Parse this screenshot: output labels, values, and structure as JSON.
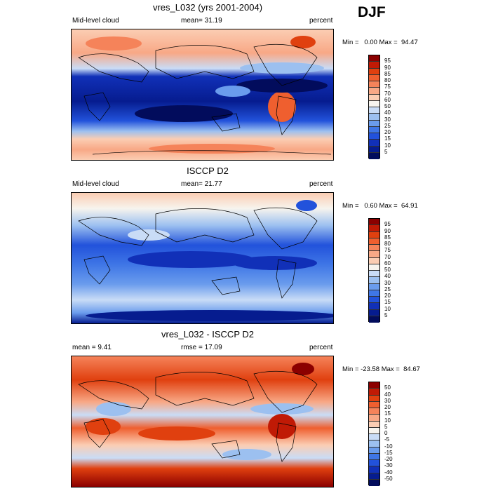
{
  "season": "DJF",
  "panels": [
    {
      "title": "vres_L032 (yrs 2001-2004)",
      "left_label": "Mid-level cloud",
      "center_label": "mean=  31.19",
      "right_label": "percent",
      "minmax": "Min =   0.00 Max =  94.47",
      "colorbar_levels": [
        "95",
        "90",
        "85",
        "80",
        "75",
        "70",
        "60",
        "50",
        "40",
        "30",
        "25",
        "20",
        "15",
        "10",
        "5"
      ],
      "colorbar_colors": [
        "#8b0000",
        "#c01a05",
        "#e0400f",
        "#ef5f2f",
        "#f5835a",
        "#f8a886",
        "#fbcdb3",
        "#f7f4ee",
        "#c9dcf6",
        "#9cc0f0",
        "#6a9ced",
        "#3f76e6",
        "#2252db",
        "#1130b8",
        "#061c8f",
        "#020c5c"
      ]
    },
    {
      "title": "ISCCP D2",
      "left_label": "Mid-level cloud",
      "center_label": "mean=  21.77",
      "right_label": "percent",
      "minmax": "Min =   0.60 Max =  64.91",
      "colorbar_levels": [
        "95",
        "90",
        "85",
        "80",
        "75",
        "70",
        "60",
        "50",
        "40",
        "30",
        "25",
        "20",
        "15",
        "10",
        "5"
      ],
      "colorbar_colors": [
        "#8b0000",
        "#c01a05",
        "#e0400f",
        "#ef5f2f",
        "#f5835a",
        "#f8a886",
        "#fbcdb3",
        "#f7f4ee",
        "#c9dcf6",
        "#9cc0f0",
        "#6a9ced",
        "#3f76e6",
        "#2252db",
        "#1130b8",
        "#061c8f",
        "#020c5c"
      ]
    },
    {
      "title": "vres_L032 - ISCCP D2",
      "left_label": "mean =   9.41",
      "center_label": "rmse =  17.09",
      "right_label": "percent",
      "minmax": "Min = -23.58 Max =  84.67",
      "colorbar_levels": [
        "50",
        "40",
        "30",
        "20",
        "15",
        "10",
        "5",
        "0",
        "-5",
        "-10",
        "-15",
        "-20",
        "-30",
        "-40",
        "-50"
      ],
      "colorbar_colors": [
        "#8b0000",
        "#c01a05",
        "#e0400f",
        "#ef5f2f",
        "#f5835a",
        "#f8a886",
        "#fbcdb3",
        "#f7f4ee",
        "#c9dcf6",
        "#9cc0f0",
        "#6a9ced",
        "#3f76e6",
        "#2252db",
        "#1130b8",
        "#061c8f",
        "#020c5c"
      ]
    }
  ]
}
